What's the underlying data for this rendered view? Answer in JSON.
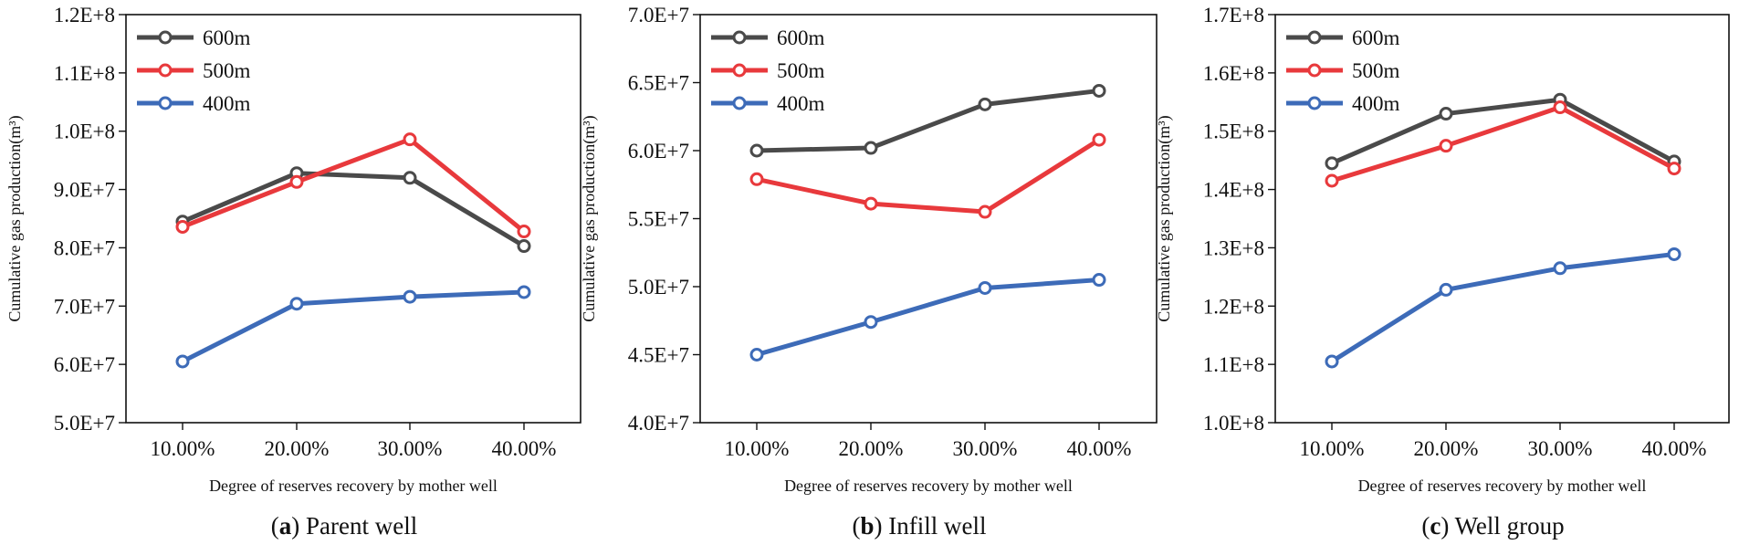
{
  "chart_data": [
    {
      "type": "line",
      "caption_letter": "a",
      "caption_text": "Parent well",
      "xlabel": "Degree of reserves recovery by mother well",
      "ylabel": "Cumulative gas production(m³)",
      "categories": [
        "10.00%",
        "20.00%",
        "30.00%",
        "40.00%"
      ],
      "ylim": [
        50000000,
        120000000
      ],
      "yticks": [
        50000000,
        60000000,
        70000000,
        80000000,
        90000000,
        100000000,
        110000000,
        120000000
      ],
      "ytick_labels": [
        "5.0E+7",
        "6.0E+7",
        "7.0E+7",
        "8.0E+7",
        "9.0E+7",
        "1.0E+8",
        "1.1E+8",
        "1.2E+8"
      ],
      "series": [
        {
          "name": "600m",
          "color": "#4a4a4a",
          "values": [
            84500000,
            92800000,
            92000000,
            80300000
          ]
        },
        {
          "name": "500m",
          "color": "#e8393c",
          "values": [
            83600000,
            91300000,
            98600000,
            82800000
          ]
        },
        {
          "name": "400m",
          "color": "#3d6bb8",
          "values": [
            60500000,
            70400000,
            71600000,
            72400000
          ]
        }
      ]
    },
    {
      "type": "line",
      "caption_letter": "b",
      "caption_text": "Infill well",
      "xlabel": "Degree of reserves recovery by mother well",
      "ylabel": "Cumulative gas production(m³)",
      "categories": [
        "10.00%",
        "20.00%",
        "30.00%",
        "40.00%"
      ],
      "ylim": [
        40000000,
        70000000
      ],
      "yticks": [
        40000000,
        45000000,
        50000000,
        55000000,
        60000000,
        65000000,
        70000000
      ],
      "ytick_labels": [
        "4.0E+7",
        "4.5E+7",
        "5.0E+7",
        "5.5E+7",
        "6.0E+7",
        "6.5E+7",
        "7.0E+7"
      ],
      "series": [
        {
          "name": "600m",
          "color": "#4a4a4a",
          "values": [
            60000000,
            60200000,
            63400000,
            64400000
          ]
        },
        {
          "name": "500m",
          "color": "#e8393c",
          "values": [
            57900000,
            56100000,
            55500000,
            60800000
          ]
        },
        {
          "name": "400m",
          "color": "#3d6bb8",
          "values": [
            45000000,
            47400000,
            49900000,
            50500000
          ]
        }
      ]
    },
    {
      "type": "line",
      "caption_letter": "c",
      "caption_text": "Well group",
      "xlabel": "Degree of reserves recovery by mother well",
      "ylabel": "Cumulative gas production(m³)",
      "categories": [
        "10.00%",
        "20.00%",
        "30.00%",
        "40.00%"
      ],
      "ylim": [
        100000000,
        170000000
      ],
      "yticks": [
        100000000,
        110000000,
        120000000,
        130000000,
        140000000,
        150000000,
        160000000,
        170000000
      ],
      "ytick_labels": [
        "1.0E+8",
        "1.1E+8",
        "1.2E+8",
        "1.3E+8",
        "1.4E+8",
        "1.5E+8",
        "1.6E+8",
        "1.7E+8"
      ],
      "series": [
        {
          "name": "600m",
          "color": "#4a4a4a",
          "values": [
            144500000,
            153000000,
            155400000,
            144800000
          ]
        },
        {
          "name": "500m",
          "color": "#e8393c",
          "values": [
            141500000,
            147500000,
            154100000,
            143600000
          ]
        },
        {
          "name": "400m",
          "color": "#3d6bb8",
          "values": [
            110500000,
            122800000,
            126500000,
            128900000
          ]
        }
      ]
    }
  ]
}
